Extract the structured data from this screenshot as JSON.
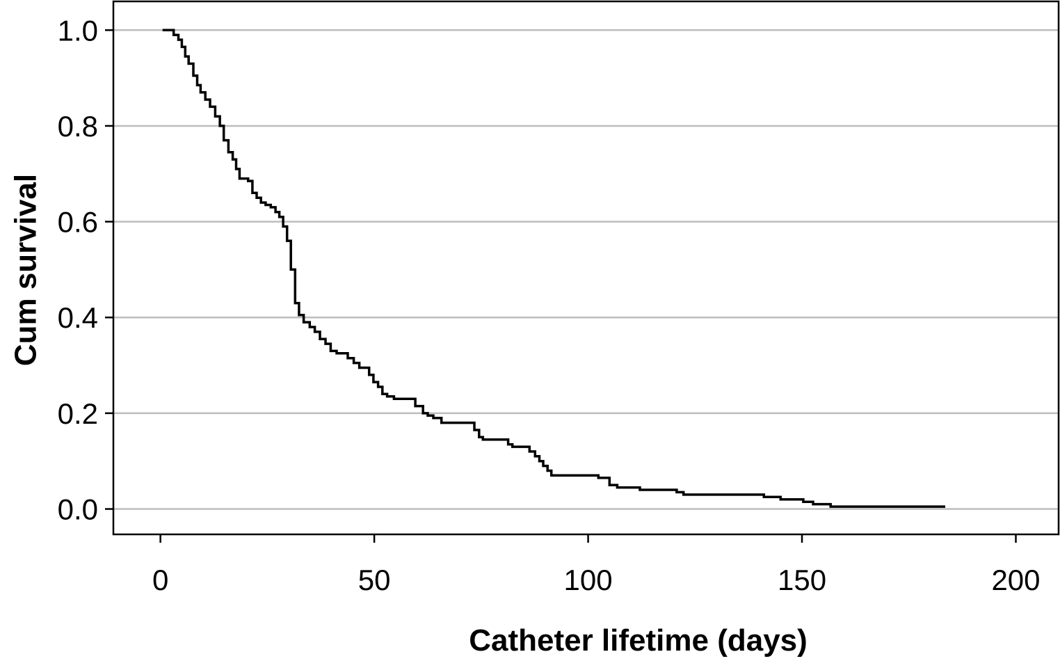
{
  "chart_data": {
    "type": "line",
    "step": true,
    "title": "",
    "xlabel": "Catheter lifetime (days)",
    "ylabel": "Cum survival",
    "xlim": [
      -11,
      210
    ],
    "ylim": [
      -0.053,
      1.06
    ],
    "grid": "horizontal",
    "line_color": "#000000",
    "grid_color": "#bdbdbd",
    "x_ticks": [
      0,
      50,
      100,
      150,
      200
    ],
    "x_tick_labels": [
      "0",
      "50",
      "100",
      "150",
      "200"
    ],
    "y_ticks": [
      0.0,
      0.2,
      0.4,
      0.6,
      0.8,
      1.0
    ],
    "y_tick_labels": [
      "0.0",
      "0.2",
      "0.4",
      "0.6",
      "0.8",
      "1.0"
    ],
    "series": [
      {
        "x": [
          0.5,
          3.1,
          4.2,
          5.0,
          5.8,
          6.6,
          7.7,
          8.6,
          9.4,
          10.5,
          11.6,
          12.8,
          13.9,
          14.8,
          15.9,
          16.9,
          17.7,
          18.5,
          20.5,
          21.5,
          22.5,
          23.5,
          24.6,
          25.8,
          26.9,
          27.8,
          28.7,
          29.6,
          30.5,
          31.5,
          32.4,
          33.5,
          34.9,
          36.1,
          37.3,
          38.6,
          39.8,
          41.2,
          43.8,
          45.2,
          46.5,
          48.8,
          49.8,
          50.9,
          51.9,
          53.0,
          54.6,
          59.6,
          61.4,
          62.5,
          63.8,
          65.7,
          66.6,
          73.4,
          74.5,
          75.4,
          81.3,
          82.3,
          86.3,
          87.6,
          88.6,
          89.5,
          90.5,
          91.4,
          93.1,
          102.4,
          105.0,
          106.8,
          112.1,
          120.7,
          122.3,
          141.1,
          145.0,
          150.3,
          152.6,
          156.7,
          183.5
        ],
        "y": [
          1.0,
          0.99,
          0.98,
          0.965,
          0.945,
          0.93,
          0.905,
          0.885,
          0.87,
          0.855,
          0.84,
          0.82,
          0.8,
          0.77,
          0.745,
          0.73,
          0.71,
          0.69,
          0.685,
          0.66,
          0.65,
          0.64,
          0.635,
          0.63,
          0.62,
          0.61,
          0.59,
          0.56,
          0.5,
          0.43,
          0.405,
          0.39,
          0.38,
          0.37,
          0.355,
          0.345,
          0.33,
          0.325,
          0.315,
          0.305,
          0.295,
          0.28,
          0.265,
          0.255,
          0.24,
          0.235,
          0.23,
          0.215,
          0.2,
          0.195,
          0.19,
          0.18,
          0.18,
          0.165,
          0.15,
          0.145,
          0.135,
          0.13,
          0.12,
          0.11,
          0.1,
          0.09,
          0.08,
          0.07,
          0.07,
          0.065,
          0.05,
          0.045,
          0.04,
          0.035,
          0.03,
          0.025,
          0.02,
          0.015,
          0.01,
          0.005,
          0.005
        ]
      }
    ]
  }
}
